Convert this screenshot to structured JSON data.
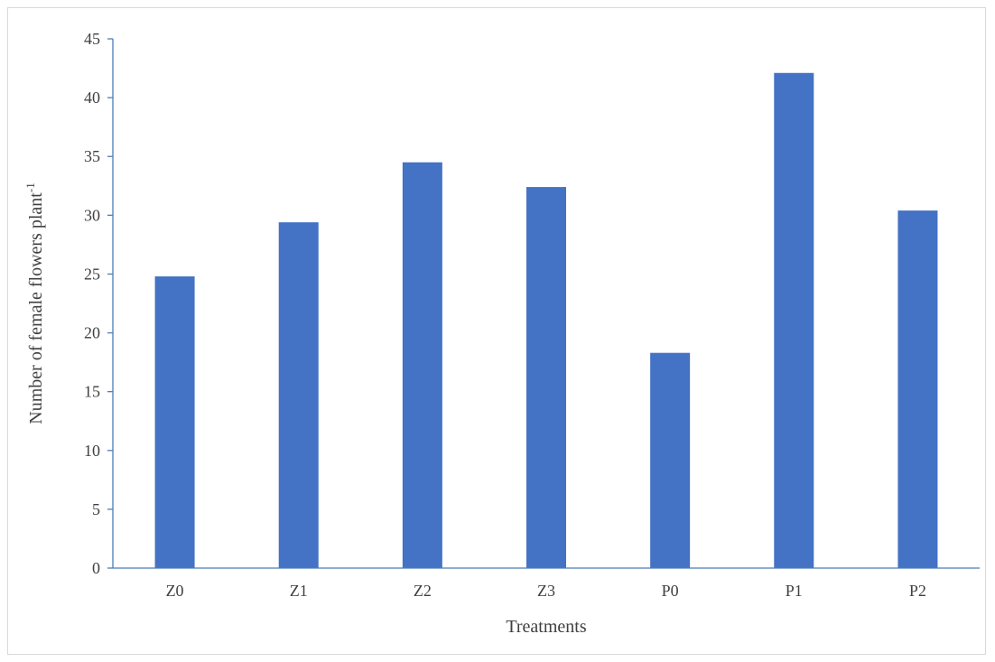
{
  "chart_data": {
    "type": "bar",
    "categories": [
      "Z0",
      "Z1",
      "Z2",
      "Z3",
      "P0",
      "P1",
      "P2"
    ],
    "values": [
      24.8,
      29.4,
      34.5,
      32.4,
      18.3,
      42.1,
      30.4
    ],
    "xlabel": "Treatments",
    "ylabel": "Number of female flowers plant",
    "ylabel_superscript": "-1",
    "ylim": [
      0,
      45
    ],
    "ytick_step": 5,
    "grid": false,
    "legend": "none",
    "bar_color": "#4472c4",
    "axis_color": "#4a7ebb"
  }
}
